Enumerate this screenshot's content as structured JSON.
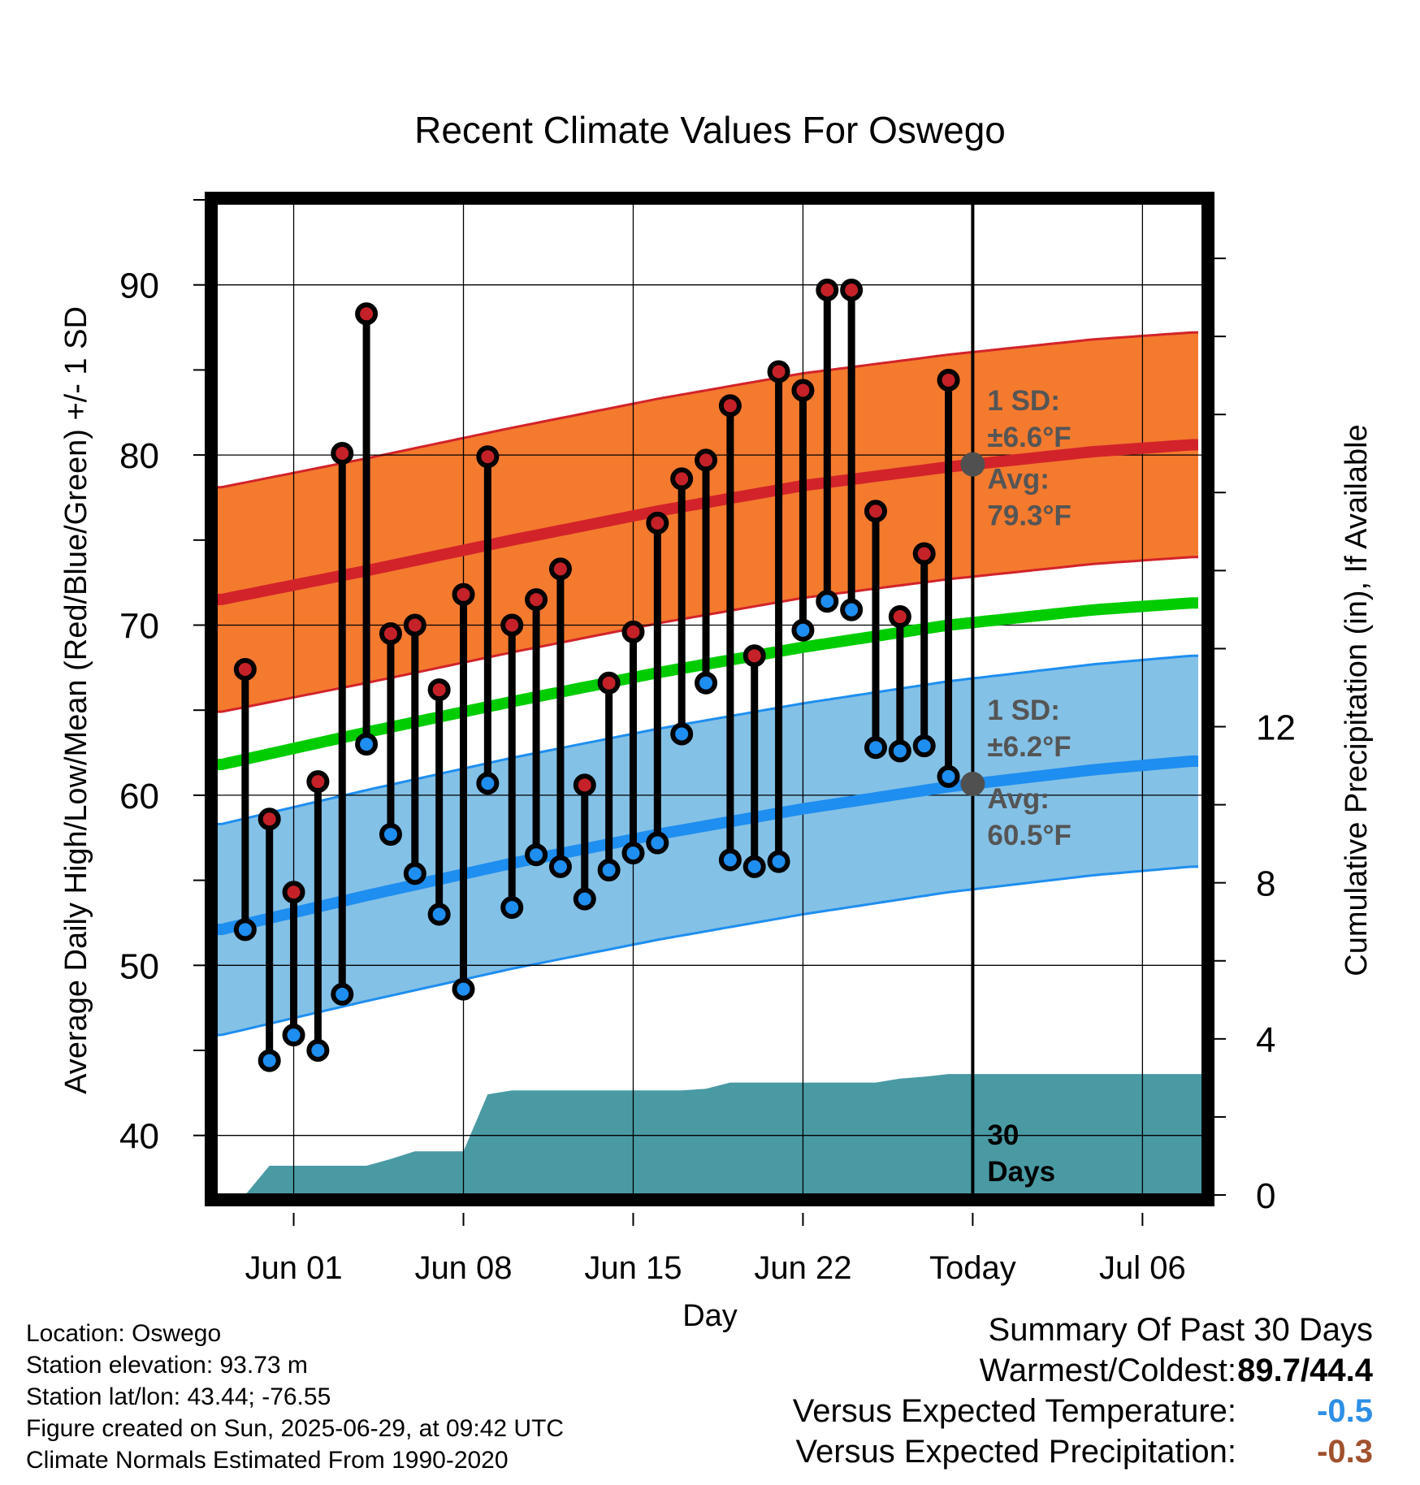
{
  "chart_data": {
    "type": "line",
    "title": "Recent Climate Values For Oswego",
    "xlabel": "Day",
    "ylabel_left": "Average Daily High/Low/Mean (Red/Blue/Green) +/- 1 SD",
    "ylabel_right": "Cumulative Precipitation (in), If Available",
    "x_tick_labels": [
      {
        "day": 3,
        "label": "Jun 01"
      },
      {
        "day": 10,
        "label": "Jun 08"
      },
      {
        "day": 17,
        "label": "Jun 15"
      },
      {
        "day": 24,
        "label": "Jun 22"
      },
      {
        "day": 31,
        "label": "Today"
      },
      {
        "day": 38,
        "label": "Jul 06"
      }
    ],
    "xlim": [
      -0.2,
      40.5
    ],
    "ylim_left": [
      36.5,
      95
    ],
    "yticks_left": [
      40,
      50,
      60,
      70,
      80,
      90
    ],
    "ylim_right": [
      0,
      25.5
    ],
    "yticks_right": [
      0,
      4,
      8,
      12
    ],
    "today_day": 31,
    "grid": true,
    "days": [
      1,
      2,
      3,
      4,
      5,
      6,
      7,
      8,
      9,
      10,
      11,
      12,
      13,
      14,
      15,
      16,
      17,
      18,
      19,
      20,
      21,
      22,
      23,
      24,
      25,
      26,
      27,
      28,
      29,
      30
    ],
    "daily_high": [
      67.4,
      58.6,
      54.3,
      60.8,
      80.1,
      88.3,
      69.5,
      70.0,
      66.2,
      71.8,
      79.9,
      70.0,
      71.5,
      73.3,
      60.6,
      66.6,
      69.6,
      76.0,
      78.6,
      79.7,
      82.9,
      68.2,
      84.9,
      83.8,
      89.7,
      89.7,
      76.7,
      70.5,
      74.2,
      84.4
    ],
    "daily_low": [
      52.1,
      44.4,
      45.9,
      45.0,
      48.3,
      63.0,
      57.7,
      55.4,
      53.0,
      48.6,
      60.7,
      53.4,
      56.5,
      55.8,
      53.9,
      55.6,
      56.6,
      57.2,
      63.6,
      66.6,
      56.2,
      55.8,
      56.1,
      69.7,
      71.4,
      70.9,
      62.8,
      62.6,
      62.9,
      61.1
    ],
    "normal_high": {
      "days": [
        0,
        6,
        12,
        18,
        24,
        30,
        36,
        40
      ],
      "values": [
        71.5,
        73.2,
        75.0,
        76.7,
        78.2,
        79.3,
        80.2,
        80.6
      ]
    },
    "normal_low": {
      "days": [
        0,
        6,
        12,
        18,
        24,
        30,
        36,
        40
      ],
      "values": [
        52.1,
        54.1,
        56.0,
        57.7,
        59.2,
        60.5,
        61.5,
        62.0
      ]
    },
    "normal_mean": {
      "days": [
        0,
        6,
        12,
        18,
        24,
        30,
        36,
        40
      ],
      "values": [
        61.8,
        63.7,
        65.5,
        67.2,
        68.7,
        70.0,
        70.9,
        71.3
      ]
    },
    "high_sd": 6.6,
    "low_sd": 6.2,
    "cumulative_precip": {
      "days": [
        1,
        2,
        3,
        4,
        5,
        6,
        7,
        8,
        9,
        10,
        11,
        12,
        13,
        14,
        15,
        16,
        17,
        18,
        19,
        20,
        21,
        22,
        23,
        24,
        25,
        26,
        27,
        28,
        29,
        30,
        40.5
      ],
      "values": [
        0.0,
        0.75,
        0.75,
        0.75,
        0.75,
        0.75,
        0.92,
        1.12,
        1.12,
        1.12,
        2.58,
        2.68,
        2.68,
        2.68,
        2.68,
        2.68,
        2.68,
        2.68,
        2.68,
        2.72,
        2.88,
        2.88,
        2.88,
        2.88,
        2.88,
        2.88,
        2.88,
        2.98,
        3.03,
        3.1,
        3.1
      ]
    },
    "annotations": {
      "high_sd_line1": "1 SD:",
      "high_sd_line2": "±6.6°F",
      "high_avg_line1": "Avg:",
      "high_avg_line2": "79.3°F",
      "low_sd_line1": "1 SD:",
      "low_sd_line2": "±6.2°F",
      "low_avg_line1": "Avg:",
      "low_avg_line2": "60.5°F",
      "window_line1": "30",
      "window_line2": "Days"
    },
    "colors": {
      "high_band": "#f47a2e",
      "high_line": "#d2232a",
      "low_band": "#84c1e6",
      "low_line": "#1e8ef0",
      "mean_line": "#00cc00",
      "precip": "#4a9aa4",
      "high_dot": "#c42228",
      "low_dot": "#1e8ef0",
      "avg_dot": "#505050",
      "annotation": "#555555"
    }
  },
  "info": {
    "location": "Location: Oswego",
    "elevation": "Station elevation: 93.73 m",
    "latlon": "Station lat/lon: 43.44; -76.55",
    "created": "Figure created on Sun, 2025-06-29, at 09:42 UTC",
    "normals": "Climate Normals Estimated From 1990-2020"
  },
  "summary": {
    "title": "Summary Of Past 30 Days",
    "warmest_coldest_label": "Warmest/Coldest:",
    "warmest_coldest_value": "89.7/44.4",
    "temp_label": "Versus Expected Temperature:",
    "temp_value": "-0.5",
    "temp_color": "#2e8fe6",
    "precip_label": "Versus Expected Precipitation:",
    "precip_value": "-0.3",
    "precip_color": "#a0522d"
  }
}
